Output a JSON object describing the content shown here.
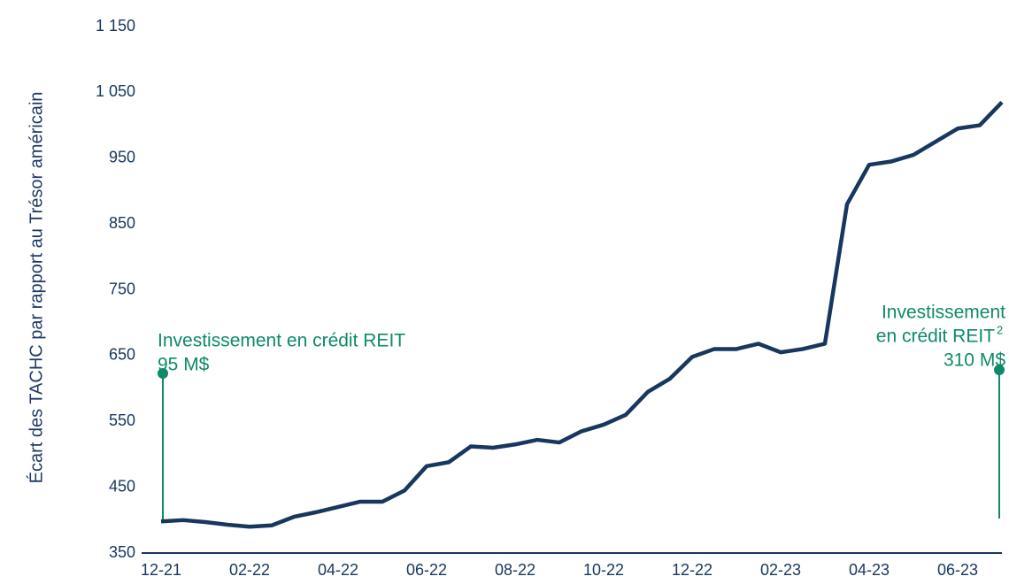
{
  "chart_data": {
    "type": "line",
    "y_label": "Écart des TACHC par rapport au Trésor américain",
    "categories": [
      "12-21",
      null,
      null,
      null,
      "02-22",
      null,
      null,
      null,
      "04-22",
      null,
      null,
      null,
      "06-22",
      null,
      null,
      null,
      "08-22",
      null,
      null,
      null,
      "10-22",
      null,
      null,
      null,
      "12-22",
      null,
      null,
      null,
      "02-23",
      null,
      null,
      null,
      "04-23",
      null,
      null,
      null,
      "06-23",
      null,
      null
    ],
    "series": [
      {
        "name": "Écart",
        "color": "#17375e",
        "values": [
          398,
          400,
          397,
          393,
          390,
          392,
          405,
          412,
          420,
          428,
          428,
          445,
          482,
          488,
          512,
          510,
          515,
          522,
          518,
          535,
          545,
          560,
          595,
          615,
          648,
          660,
          660,
          668,
          655,
          660,
          668,
          880,
          940,
          945,
          955,
          975,
          995,
          1000,
          1035
        ]
      }
    ],
    "ylim": [
      350,
      1150
    ],
    "yticks": [
      350,
      450,
      550,
      650,
      750,
      850,
      950,
      {
        "value": 1050,
        "label": "1 050"
      },
      {
        "value": 1150,
        "label": "1 150"
      }
    ],
    "grid": false,
    "annotations": [
      {
        "lines": [
          "Investissement en crédit REIT",
          "95 M$"
        ],
        "color": "#0e8a6a"
      },
      {
        "lines": [
          "Investissement",
          "en crédit REIT",
          "310 M$"
        ],
        "footnote": "2",
        "color": "#0e8a6a"
      }
    ]
  }
}
